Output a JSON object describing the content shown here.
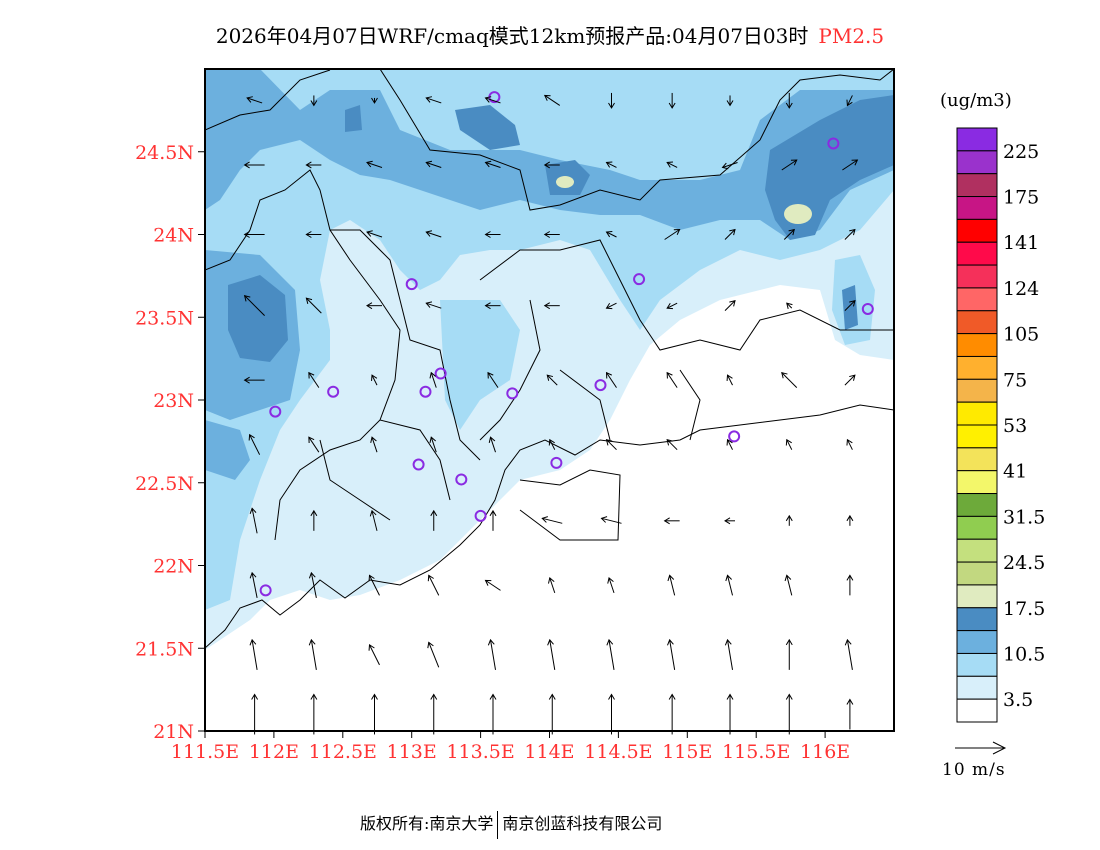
{
  "header": {
    "title": "2026年04月07日WRF/cmaq模式12km预报产品:04月07日03时",
    "pollutant": "PM2.5"
  },
  "footer": {
    "copyright": "版权所有:南京大学",
    "company": "南京创蓝科技有限公司"
  },
  "chart_data": {
    "type": "map",
    "title": "2026年04月07日WRF/cmaq模式12km预报产品:04月07日03时 PM2.5",
    "x_range": [
      111.5,
      116.5
    ],
    "y_range": [
      21.0,
      25.0
    ],
    "x_ticks": [
      "111.5E",
      "112E",
      "112.5E",
      "113E",
      "113.5E",
      "114E",
      "114.5E",
      "115E",
      "115.5E",
      "116E"
    ],
    "x_tick_values": [
      111.5,
      112,
      112.5,
      113,
      113.5,
      114,
      114.5,
      115,
      115.5,
      116
    ],
    "y_ticks": [
      "21N",
      "21.5N",
      "22N",
      "22.5N",
      "23N",
      "23.5N",
      "24N",
      "24.5N"
    ],
    "y_tick_values": [
      21,
      21.5,
      22,
      22.5,
      23,
      23.5,
      24,
      24.5
    ],
    "colorbar": {
      "unit": "(ug/m3)",
      "colors": [
        "#8a2be2",
        "#9a32cc",
        "#b03060",
        "#c71585",
        "#ff0000",
        "#ff0a4a",
        "#f5305a",
        "#ff6666",
        "#f05a28",
        "#ff8c00",
        "#ffb02e",
        "#f4b44a",
        "#ffea00",
        "#fff000",
        "#f3e35a",
        "#f3f76a",
        "#6daa3a",
        "#90cd50",
        "#c4e07e",
        "#c2d880",
        "#e0ebc0",
        "#4a8cc2",
        "#6cb0de",
        "#a6dcf5",
        "#d8effa",
        "#ffffff"
      ],
      "labels": [
        "225",
        "175",
        "141",
        "124",
        "105",
        "75",
        "53",
        "41",
        "31.5",
        "24.5",
        "17.5",
        "10.5",
        "3.5"
      ]
    },
    "wind_reference": {
      "speed": 10,
      "label": "10 m/s"
    },
    "stations": [
      [
        113.6,
        24.83
      ],
      [
        116.06,
        24.55
      ],
      [
        113.0,
        23.7
      ],
      [
        114.65,
        23.73
      ],
      [
        116.31,
        23.55
      ],
      [
        112.43,
        23.05
      ],
      [
        113.1,
        23.05
      ],
      [
        113.21,
        23.16
      ],
      [
        113.73,
        23.04
      ],
      [
        114.37,
        23.09
      ],
      [
        112.01,
        22.93
      ],
      [
        113.05,
        22.61
      ],
      [
        113.36,
        22.52
      ],
      [
        114.05,
        22.62
      ],
      [
        115.34,
        22.78
      ],
      [
        113.5,
        22.3
      ],
      [
        111.94,
        21.85
      ]
    ],
    "wind": {
      "lons": [
        111.86,
        112.29,
        112.73,
        113.16,
        113.59,
        114.02,
        114.45,
        114.89,
        115.31,
        115.74,
        116.18
      ],
      "lats": [
        24.81,
        24.42,
        24.0,
        23.57,
        23.12,
        22.73,
        22.27,
        21.88,
        21.46,
        21.1
      ],
      "uv": [
        [
          [
            -3,
            1
          ],
          [
            0,
            -2
          ],
          [
            0,
            -1
          ],
          [
            -3,
            1
          ],
          [
            -3,
            1
          ],
          [
            -3,
            2
          ],
          [
            0,
            -3
          ],
          [
            0,
            -3
          ],
          [
            0,
            -2
          ],
          [
            0,
            -3
          ],
          [
            -1,
            -2
          ]
        ],
        [
          [
            -4,
            0
          ],
          [
            -3,
            0
          ],
          [
            -3,
            1
          ],
          [
            -3,
            1
          ],
          [
            -3,
            1
          ],
          [
            -3,
            0
          ],
          [
            -2,
            1
          ],
          [
            -2,
            1
          ],
          [
            -3,
            -1
          ],
          [
            3,
            2
          ],
          [
            3,
            2
          ]
        ],
        [
          [
            -4,
            0
          ],
          [
            -3,
            0
          ],
          [
            -3,
            1
          ],
          [
            -3,
            1
          ],
          [
            -3,
            0
          ],
          [
            -3,
            0
          ],
          [
            -2,
            1
          ],
          [
            3,
            2
          ],
          [
            2,
            2
          ],
          [
            2,
            2
          ],
          [
            2,
            2
          ]
        ],
        [
          [
            -4,
            4
          ],
          [
            -3,
            3
          ],
          [
            -3,
            0
          ],
          [
            -3,
            1
          ],
          [
            -3,
            0
          ],
          [
            -3,
            0
          ],
          [
            -2,
            -1
          ],
          [
            -2,
            -1
          ],
          [
            2,
            2
          ],
          [
            -1,
            1
          ],
          [
            2,
            2
          ]
        ],
        [
          [
            -4,
            0
          ],
          [
            -2,
            3
          ],
          [
            -1,
            2
          ],
          [
            -1,
            3
          ],
          [
            -2,
            3
          ],
          [
            -2,
            2
          ],
          [
            -2,
            3
          ],
          [
            -2,
            3
          ],
          [
            -1,
            2
          ],
          [
            -3,
            3
          ],
          [
            2,
            2
          ]
        ],
        [
          [
            -2,
            4
          ],
          [
            -2,
            3
          ],
          [
            -1,
            3
          ],
          [
            -1,
            3
          ],
          [
            -1,
            3
          ],
          [
            -1,
            2
          ],
          [
            -2,
            2
          ],
          [
            -2,
            2
          ],
          [
            -1,
            2
          ],
          [
            -1,
            2
          ],
          [
            -1,
            2
          ]
        ],
        [
          [
            -1,
            5
          ],
          [
            0,
            4
          ],
          [
            -1,
            4
          ],
          [
            0,
            4
          ],
          [
            0,
            4
          ],
          [
            -4,
            1
          ],
          [
            -4,
            1
          ],
          [
            -3,
            0
          ],
          [
            -2,
            0
          ],
          [
            0,
            2
          ],
          [
            0,
            2
          ]
        ],
        [
          [
            -1,
            5
          ],
          [
            -1,
            5
          ],
          [
            -2,
            4
          ],
          [
            -2,
            4
          ],
          [
            -3,
            2
          ],
          [
            -1,
            3
          ],
          [
            -1,
            3
          ],
          [
            -1,
            4
          ],
          [
            -1,
            4
          ],
          [
            -1,
            4
          ],
          [
            0,
            4
          ]
        ],
        [
          [
            -1,
            6
          ],
          [
            -1,
            6
          ],
          [
            -2,
            4
          ],
          [
            -2,
            5
          ],
          [
            -1,
            6
          ],
          [
            -1,
            6
          ],
          [
            -1,
            6
          ],
          [
            -1,
            6
          ],
          [
            -1,
            6
          ],
          [
            0,
            6
          ],
          [
            -1,
            6
          ]
        ],
        [
          [
            0,
            8
          ],
          [
            0,
            8
          ],
          [
            0,
            8
          ],
          [
            0,
            8
          ],
          [
            0,
            8
          ],
          [
            0,
            8
          ],
          [
            0,
            8
          ],
          [
            0,
            8
          ],
          [
            0,
            8
          ],
          [
            0,
            8
          ],
          [
            0,
            6
          ]
        ]
      ]
    }
  }
}
